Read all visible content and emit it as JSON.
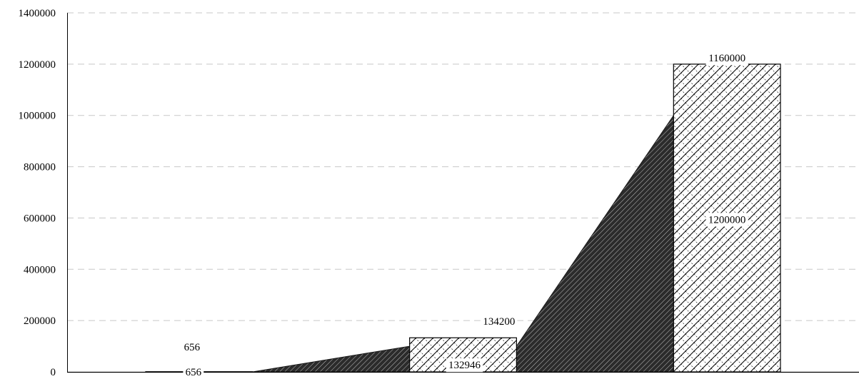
{
  "chart_data": {
    "type": "bar",
    "categories": [
      "",
      "",
      ""
    ],
    "series": [
      {
        "type": "area",
        "values": [
          0,
          100000,
          1000000
        ],
        "fill": "#2b2b2b"
      },
      {
        "type": "bar",
        "values": [
          656,
          134200,
          1160000
        ],
        "labels": [
          "656",
          "134200",
          "1160000"
        ]
      },
      {
        "type": "bar",
        "values": [
          656,
          132946,
          1200000
        ],
        "labels": [
          "656",
          "132946",
          "1200000"
        ]
      }
    ],
    "ylim": [
      0,
      1400000
    ],
    "yticks": [
      "0",
      "200000",
      "400000",
      "600000",
      "800000",
      "1000000",
      "1200000",
      "1400000"
    ],
    "grid": true,
    "legend": "none"
  }
}
